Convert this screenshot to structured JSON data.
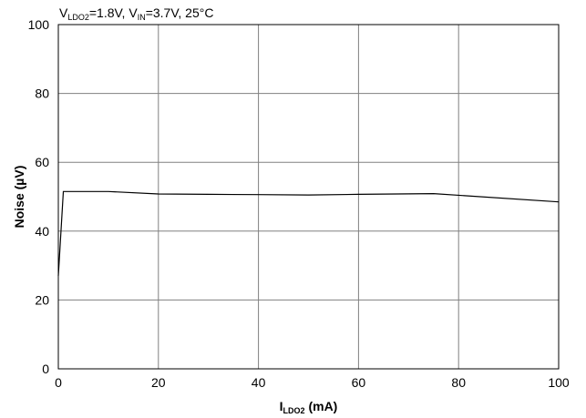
{
  "chart_data": {
    "type": "line",
    "annotation": {
      "v_ldo2_symbol": "V",
      "v_ldo2_sub": "LDO2",
      "v_ldo2_val": "=1.8V, ",
      "v_in_symbol": "V",
      "v_in_sub": "IN",
      "v_in_val": "=3.7V, 25°C"
    },
    "xlabel": {
      "symbol": "I",
      "sub": "LDO2",
      "rest": " (mA)"
    },
    "ylabel": "Noise (µV)",
    "xlim": [
      0,
      100
    ],
    "ylim": [
      0,
      100
    ],
    "xticks": [
      "0",
      "20",
      "40",
      "60",
      "80",
      "100"
    ],
    "yticks": [
      "0",
      "20",
      "40",
      "60",
      "80",
      "100"
    ],
    "grid": true,
    "series": [
      {
        "x": [
          0,
          1,
          10,
          20,
          30,
          40,
          50,
          60,
          75,
          100
        ],
        "y": [
          27,
          51.5,
          51.5,
          50.8,
          50.7,
          50.6,
          50.5,
          50.7,
          50.9,
          48.5
        ]
      }
    ],
    "line_color": "#000000",
    "grid_color": "#808080"
  }
}
